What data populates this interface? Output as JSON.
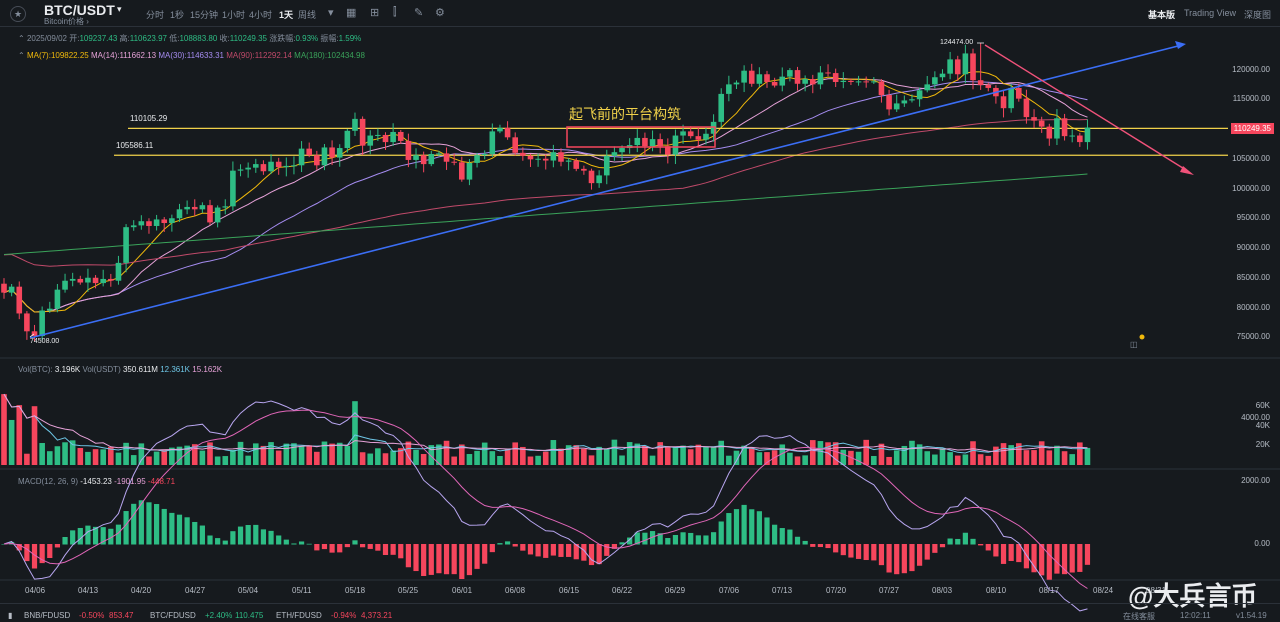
{
  "header": {
    "symbol": "BTC/USDT",
    "subtitle": "Bitcoin价格 ›",
    "timeframes": [
      "分时",
      "1秒",
      "15分钟",
      "1小时",
      "4小时",
      "1天",
      "周线"
    ],
    "active_timeframe": "1天",
    "views": [
      "基本版",
      "Trading View",
      "深度图"
    ],
    "active_view": "基本版"
  },
  "ohlc": {
    "date": "2025/09/02",
    "open_label": "开:",
    "open": "109237.43",
    "high_label": "高:",
    "high": "110623.97",
    "low_label": "低:",
    "low": "108883.80",
    "close_label": "收:",
    "close": "110249.35",
    "change_label": "涨跌幅:",
    "change": "0.93%",
    "amp_label": "振幅:",
    "amp": "1.59%"
  },
  "ma": {
    "ma7": "109822.25",
    "ma14": "111662.13",
    "ma30": "114633.31",
    "ma90": "112292.14",
    "ma180": "102434.98"
  },
  "price_axis": {
    "labels": [
      "120000.00",
      "115000.00",
      "110000.00",
      "105000.00",
      "100000.00",
      "95000.00",
      "90000.00",
      "85000.00",
      "80000.00",
      "75000.00"
    ],
    "last": "110249.35"
  },
  "levels": [
    {
      "label": "110105.29"
    },
    {
      "label": "105586.11"
    }
  ],
  "annotation": "起飞前的平台构筑",
  "extremes": {
    "high": "124474.00",
    "low": "74508.00"
  },
  "volume": {
    "label": "Vol(BTC):",
    "btc": "3.196K",
    "usdt_label": "Vol(USDT)",
    "usdt": "350.611M",
    "ma5": "12.361K",
    "ma10": "15.162K",
    "axis": [
      "60K",
      "40K",
      "20K"
    ]
  },
  "macd": {
    "label": "MACD(12, 26, 9)",
    "macd": "-1453.23",
    "signal": "-1901.95",
    "hist": "-448.71",
    "axis": [
      "4000.00",
      "2000.00",
      "0.00"
    ]
  },
  "dates": [
    "04/06",
    "04/13",
    "04/20",
    "04/27",
    "05/04",
    "05/11",
    "05/18",
    "05/25",
    "06/01",
    "06/08",
    "06/15",
    "06/22",
    "06/29",
    "07/06",
    "07/13",
    "07/20",
    "07/27",
    "08/03",
    "08/10",
    "08/17",
    "08/24",
    "08/31"
  ],
  "footer": {
    "tickers": [
      {
        "sym": "BNB/FDUSD",
        "chg": "-0.50%",
        "px": "853.47",
        "up": false
      },
      {
        "sym": "BTC/FDUSD",
        "chg": "+2.40%",
        "px": "110.475",
        "up": true
      },
      {
        "sym": "ETH/FDUSD",
        "chg": "-0.94%",
        "px": "4,373.21",
        "up": false
      }
    ],
    "service": "在线客服",
    "time": "12:02:11",
    "version": "v1.54.19"
  },
  "watermark": "@大兵言币",
  "colors": {
    "up": "#2ebd85",
    "down": "#f6465d",
    "level": "#f0d14a",
    "trend_up": "#3b6ef5",
    "trend_down": "#f0527a",
    "ma7": "#f0b90b",
    "ma14": "#e6a2d8",
    "ma30": "#a58cf0",
    "ma90": "#c04a6a",
    "ma180": "#3aa35a"
  },
  "chart_data": {
    "type": "candlestick",
    "start_date": "2025/04/02",
    "closes": [
      82500,
      83500,
      79000,
      76000,
      75200,
      79500,
      79800,
      83000,
      84500,
      84800,
      84200,
      85000,
      84100,
      84800,
      84500,
      87500,
      93500,
      93800,
      94500,
      93700,
      94800,
      94200,
      95000,
      96500,
      96900,
      96500,
      97200,
      94300,
      96800,
      97000,
      103000,
      103200,
      103500,
      104100,
      102900,
      104500,
      103600,
      103800,
      103900,
      106700,
      105600,
      103900,
      106900,
      105200,
      106800,
      109700,
      111700,
      107200,
      108900,
      109000,
      107800,
      109500,
      108000,
      104800,
      105600,
      104100,
      105800,
      105900,
      104500,
      104400,
      101500,
      104300,
      105600,
      105800,
      109600,
      110200,
      108600,
      106000,
      105500,
      104900,
      105000,
      104700,
      106100,
      104500,
      104700,
      103300,
      103000,
      100900,
      102200,
      105500,
      106100,
      106800,
      107300,
      108500,
      107100,
      108300,
      107100,
      105700,
      108900,
      109600,
      108800,
      108200,
      109200,
      111200,
      115900,
      117500,
      117800,
      119800,
      117600,
      119200,
      117900,
      117300,
      118800,
      119900,
      117600,
      118400,
      117500,
      119500,
      119400,
      117900,
      118100,
      117900,
      118000,
      117900,
      118000,
      115700,
      113300,
      114300,
      114800,
      115000,
      116500,
      117500,
      118700,
      119300,
      121700,
      119200,
      122700,
      118200,
      117400,
      116900,
      115500,
      113500,
      116900,
      115100,
      112000,
      111400,
      110400,
      108400,
      111800,
      108800,
      108900,
      107800,
      110249
    ],
    "ma_latest": {
      "MA(7)": 109822.25,
      "MA(14)": 111662.13,
      "MA(30)": 114633.31,
      "MA(90)": 112292.14,
      "MA(180)": 102434.98
    },
    "horizontal_levels": [
      110105.29,
      105586.11
    ],
    "high_marker": 124474.0,
    "low_marker": 74508.0,
    "ylim": [
      73000,
      126000
    ]
  }
}
